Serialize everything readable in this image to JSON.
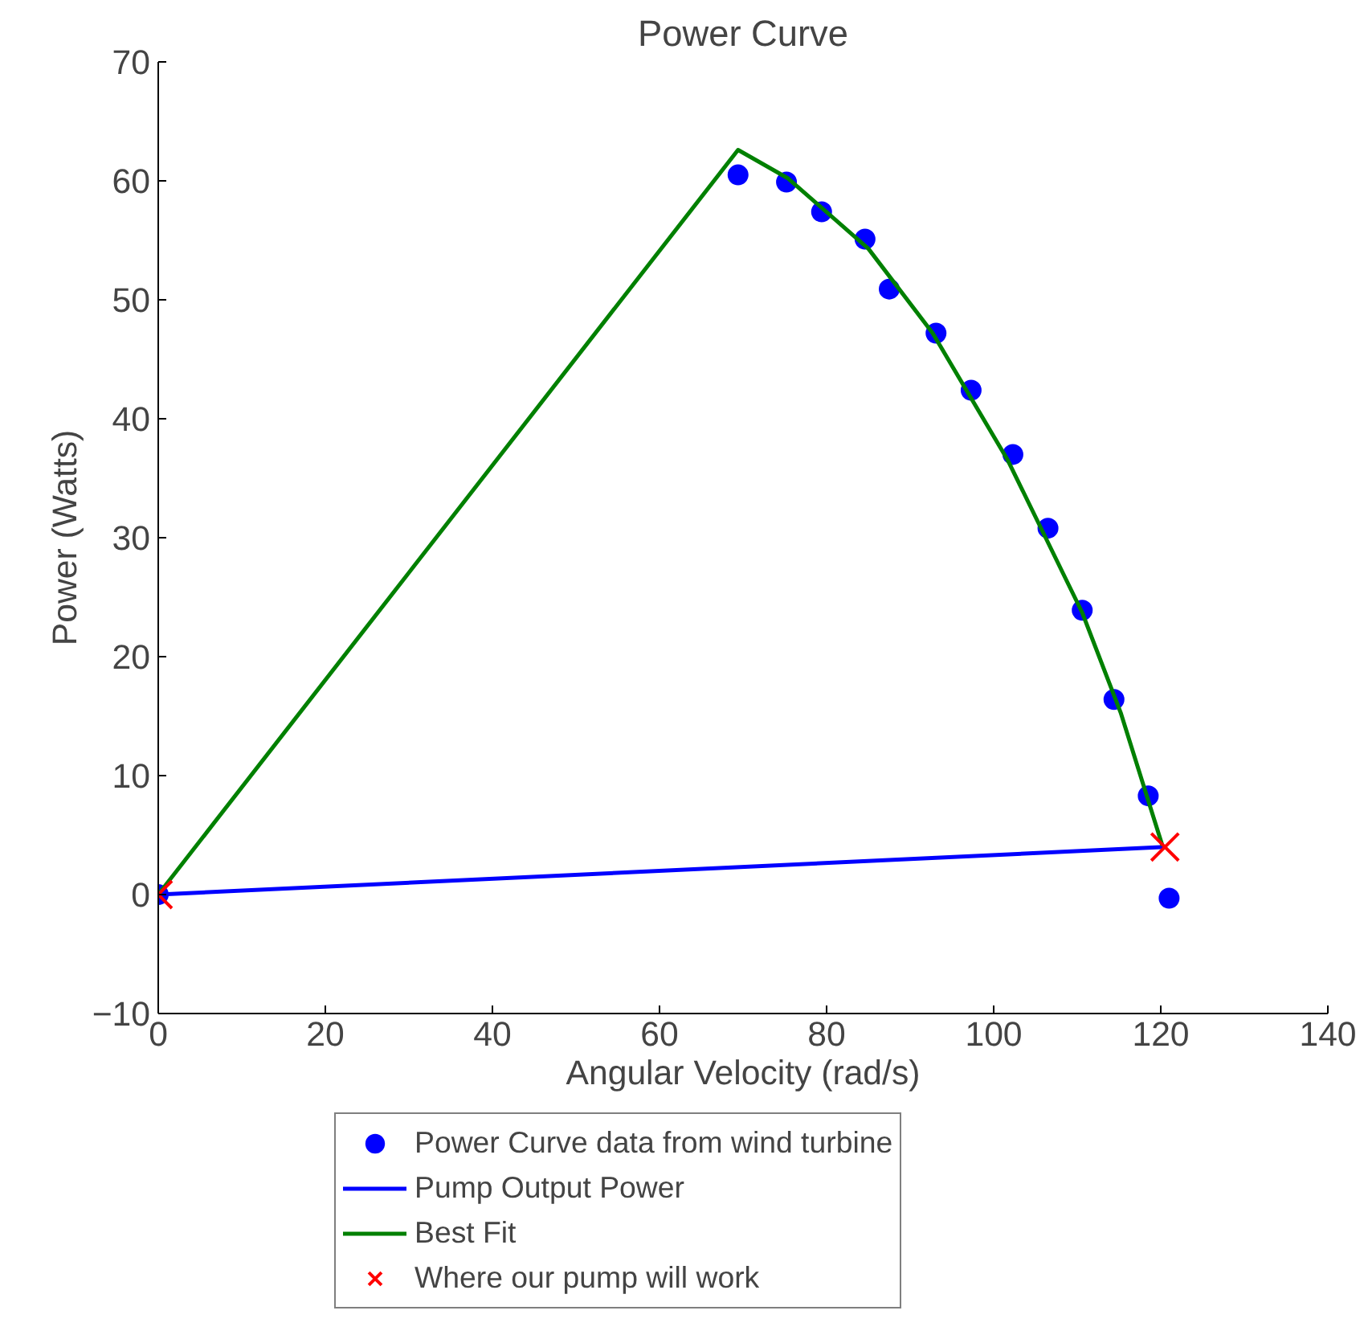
{
  "chart_data": {
    "type": "scatter",
    "title": "Power Curve",
    "xlabel": "Angular Velocity (rad/s)",
    "ylabel": "Power (Watts)",
    "xlim": [
      0,
      140
    ],
    "ylim": [
      -10,
      70
    ],
    "xticks": [
      0,
      20,
      40,
      60,
      80,
      100,
      120,
      140
    ],
    "yticks": [
      -10,
      0,
      10,
      20,
      30,
      40,
      50,
      60,
      70
    ],
    "grid": false,
    "legend": "bottom",
    "series": [
      {
        "name": "Power Curve data from wind turbine",
        "marker": "circle",
        "color": "#0000ff",
        "x": [
          0,
          69.4,
          75.2,
          79.4,
          84.6,
          87.5,
          93.1,
          97.3,
          102.3,
          106.5,
          110.6,
          114.4,
          118.5,
          121.0
        ],
        "values": [
          0,
          60.5,
          59.9,
          57.4,
          55.1,
          50.9,
          47.2,
          42.4,
          37.0,
          30.8,
          23.9,
          16.4,
          8.3,
          -0.3
        ]
      },
      {
        "name": "Pump Output Power",
        "type": "line",
        "marker": "none",
        "color": "#0000ff",
        "x": [
          0,
          120.5
        ],
        "values": [
          0,
          4.0
        ]
      },
      {
        "name": "Best Fit",
        "type": "line",
        "marker": "none",
        "color": "#008000",
        "x": [
          0,
          69.4,
          75.4,
          85.0,
          92.7,
          101.7,
          110.6,
          115.2,
          120.2
        ],
        "values": [
          0,
          62.6,
          60.2,
          54.3,
          47.2,
          36.5,
          23.7,
          15.3,
          4.1
        ]
      },
      {
        "name": "Where our pump will work",
        "type": "scatter",
        "marker": "cross",
        "color": "#ff0000",
        "x": [
          0,
          120.5
        ],
        "values": [
          0,
          4.0
        ]
      }
    ]
  }
}
